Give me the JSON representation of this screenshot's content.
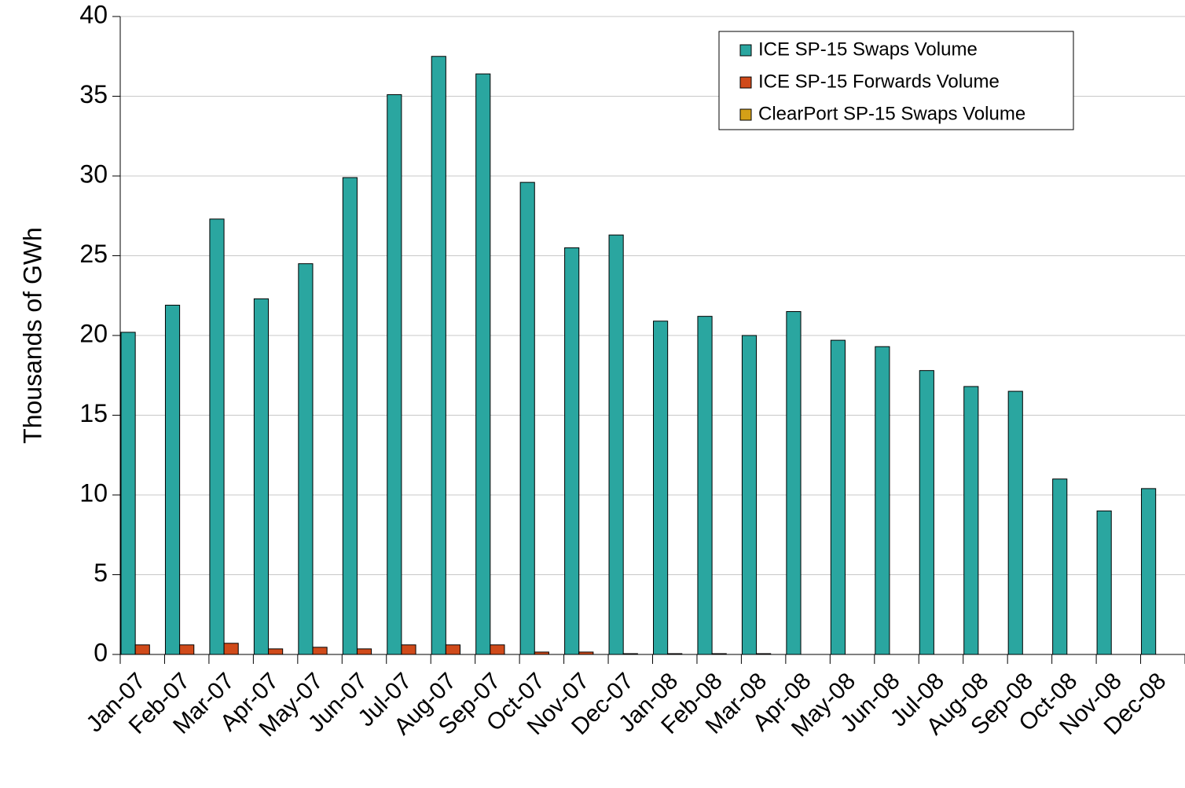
{
  "chart_data": {
    "type": "bar",
    "y_label": "Thousands of GWh",
    "categories": [
      "Jan-07",
      "Feb-07",
      "Mar-07",
      "Apr-07",
      "May-07",
      "Jun-07",
      "Jul-07",
      "Aug-07",
      "Sep-07",
      "Oct-07",
      "Nov-07",
      "Dec-07",
      "Jan-08",
      "Feb-08",
      "Mar-08",
      "Apr-08",
      "May-08",
      "Jun-08",
      "Jul-08",
      "Aug-08",
      "Sep-08",
      "Oct-08",
      "Nov-08",
      "Dec-08"
    ],
    "series": [
      {
        "name": "ICE SP-15 Swaps Volume",
        "color": "#2aa6a0",
        "values": [
          20.2,
          21.9,
          27.3,
          22.3,
          24.5,
          29.9,
          35.1,
          37.5,
          36.4,
          29.6,
          25.5,
          26.3,
          20.9,
          21.2,
          20.0,
          21.5,
          19.7,
          19.3,
          17.8,
          16.8,
          16.5,
          11.0,
          9.0,
          10.4
        ]
      },
      {
        "name": "ICE SP-15 Forwards Volume",
        "color": "#d04a1a",
        "values": [
          0.6,
          0.6,
          0.7,
          0.35,
          0.45,
          0.35,
          0.6,
          0.6,
          0.6,
          0.15,
          0.15,
          0.05,
          0.05,
          0.05,
          0.05,
          0,
          0,
          0,
          0,
          0,
          0,
          0,
          0,
          0
        ]
      },
      {
        "name": "ClearPort SP-15 Swaps Volume",
        "color": "#d4a017",
        "values": [
          0,
          0,
          0,
          0,
          0,
          0,
          0,
          0,
          0,
          0,
          0,
          0,
          0,
          0,
          0,
          0,
          0,
          0,
          0,
          0,
          0,
          0,
          0,
          0
        ]
      }
    ],
    "ylim": [
      0,
      40
    ],
    "yticks": [
      0,
      5,
      10,
      15,
      20,
      25,
      30,
      35,
      40
    ],
    "grid": true,
    "legend": "upper right"
  }
}
